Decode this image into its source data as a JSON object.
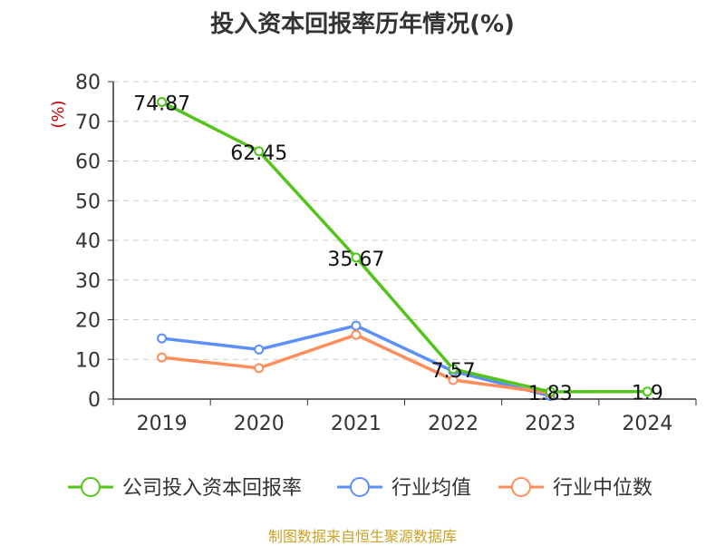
{
  "chart_data": {
    "type": "line",
    "title": "投入资本回报率历年情况(%)",
    "ylabel": "(%)",
    "xlabel": "",
    "categories": [
      "2019",
      "2020",
      "2021",
      "2022",
      "2023",
      "2024"
    ],
    "yticks": [
      0,
      10,
      20,
      30,
      40,
      50,
      60,
      70,
      80
    ],
    "ylim": [
      0,
      80
    ],
    "grid": true,
    "legend_position": "bottom",
    "series": [
      {
        "name": "公司投入资本回报率",
        "color": "#52c41a",
        "values": [
          74.87,
          62.45,
          35.67,
          7.57,
          1.83,
          1.9
        ],
        "labels": [
          "74.87",
          "62.45",
          "35.67",
          "7.57",
          "1.83",
          "1.9"
        ]
      },
      {
        "name": "行业均值",
        "color": "#5b8ff9",
        "values": [
          15.3,
          12.5,
          18.5,
          7.0,
          0.8,
          null
        ]
      },
      {
        "name": "行业中位数",
        "color": "#ff8c5a",
        "values": [
          10.5,
          7.8,
          16.2,
          4.8,
          1.5,
          null
        ]
      }
    ]
  },
  "source": "制图数据来自恒生聚源数据库"
}
